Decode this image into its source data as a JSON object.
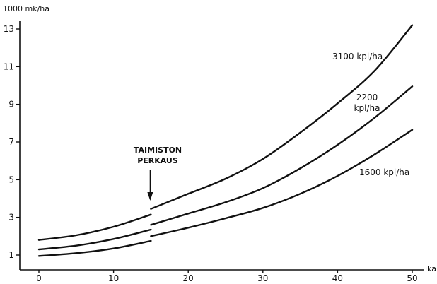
{
  "chart_data": {
    "type": "line",
    "ylabel": "1000 mk/ha",
    "xlabel": "ika",
    "xlim": [
      0,
      50
    ],
    "ylim": [
      0,
      13.5
    ],
    "xticks": [
      0,
      10,
      20,
      30,
      40,
      50
    ],
    "yticks": [
      1,
      3,
      5,
      7,
      9,
      11,
      13
    ],
    "grid": false,
    "annotation": {
      "lines": [
        "TAIMISTON",
        "PERKAUS"
      ],
      "x": 15
    },
    "series": [
      {
        "name": "3100 kpl/ha",
        "segments": [
          {
            "x": [
              0,
              5,
              10,
              15
            ],
            "y": [
              1.8,
              2.05,
              2.5,
              3.15
            ]
          },
          {
            "x": [
              15,
              20,
              25,
              30,
              35,
              40,
              45,
              50
            ],
            "y": [
              3.45,
              4.25,
              5.05,
              6.1,
              7.5,
              9.05,
              10.8,
              13.2
            ]
          }
        ]
      },
      {
        "name": "2200 kpl/ha",
        "segments": [
          {
            "x": [
              0,
              5,
              10,
              15
            ],
            "y": [
              1.3,
              1.5,
              1.85,
              2.35
            ]
          },
          {
            "x": [
              15,
              20,
              25,
              30,
              35,
              40,
              45,
              50
            ],
            "y": [
              2.6,
              3.2,
              3.8,
              4.55,
              5.6,
              6.85,
              8.3,
              9.95
            ]
          }
        ]
      },
      {
        "name": "1600 kpl/ha",
        "segments": [
          {
            "x": [
              0,
              5,
              10,
              15
            ],
            "y": [
              0.95,
              1.1,
              1.35,
              1.75
            ]
          },
          {
            "x": [
              15,
              20,
              25,
              30,
              35,
              40,
              45,
              50
            ],
            "y": [
              2.0,
              2.45,
              2.95,
              3.5,
              4.25,
              5.2,
              6.35,
              7.65
            ]
          }
        ]
      }
    ]
  }
}
